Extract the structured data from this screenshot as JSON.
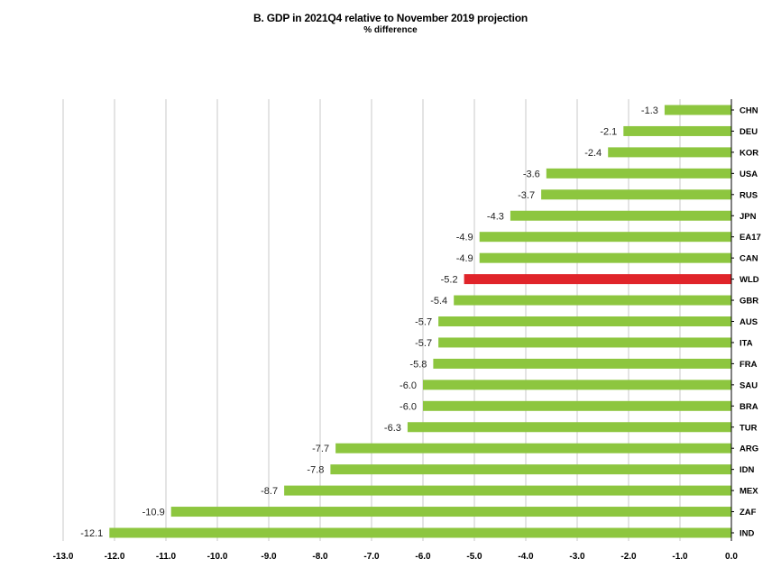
{
  "chart_data": {
    "type": "bar",
    "orientation": "horizontal",
    "title": "B. GDP in 2021Q4 relative to November 2019 projection",
    "subtitle": "% difference",
    "categories": [
      "CHN",
      "DEU",
      "KOR",
      "USA",
      "RUS",
      "JPN",
      "EA17",
      "CAN",
      "WLD",
      "GBR",
      "AUS",
      "ITA",
      "FRA",
      "SAU",
      "BRA",
      "TUR",
      "ARG",
      "IDN",
      "MEX",
      "ZAF",
      "IND"
    ],
    "values": [
      -1.3,
      -2.1,
      -2.4,
      -3.6,
      -3.7,
      -4.3,
      -4.9,
      -4.9,
      -5.2,
      -5.4,
      -5.7,
      -5.7,
      -5.8,
      -6.0,
      -6.0,
      -6.3,
      -7.7,
      -7.8,
      -8.7,
      -10.9,
      -12.1
    ],
    "data_labels": [
      "-1.3",
      "-2.1",
      "-2.4",
      "-3.6",
      "-3.7",
      "-4.3",
      "-4.9",
      "-4.9",
      "-5.2",
      "-5.4",
      "-5.7",
      "-5.7",
      "-5.8",
      "-6.0",
      "-6.0",
      "-6.3",
      "-7.7",
      "-7.8",
      "-8.7",
      "-10.9",
      "-12.1"
    ],
    "xlim": [
      -13.0,
      0.0
    ],
    "xticks": [
      -13,
      -12,
      -11,
      -10,
      -9,
      -8,
      -7,
      -6,
      -5,
      -4,
      -3,
      -2,
      -1,
      0
    ],
    "xtick_labels": [
      "-13.0",
      "-12.0",
      "-11.0",
      "-10.0",
      "-9.0",
      "-8.0",
      "-7.0",
      "-6.0",
      "-5.0",
      "-4.0",
      "-3.0",
      "-2.0",
      "-1.0",
      "0.0"
    ],
    "grid": "vertical",
    "legend": "none",
    "colors": {
      "bar": "#8dc63f",
      "highlight": "#e0242a",
      "grid": "#c8c8c8",
      "axis": "#000000"
    },
    "highlight_category": "WLD"
  }
}
